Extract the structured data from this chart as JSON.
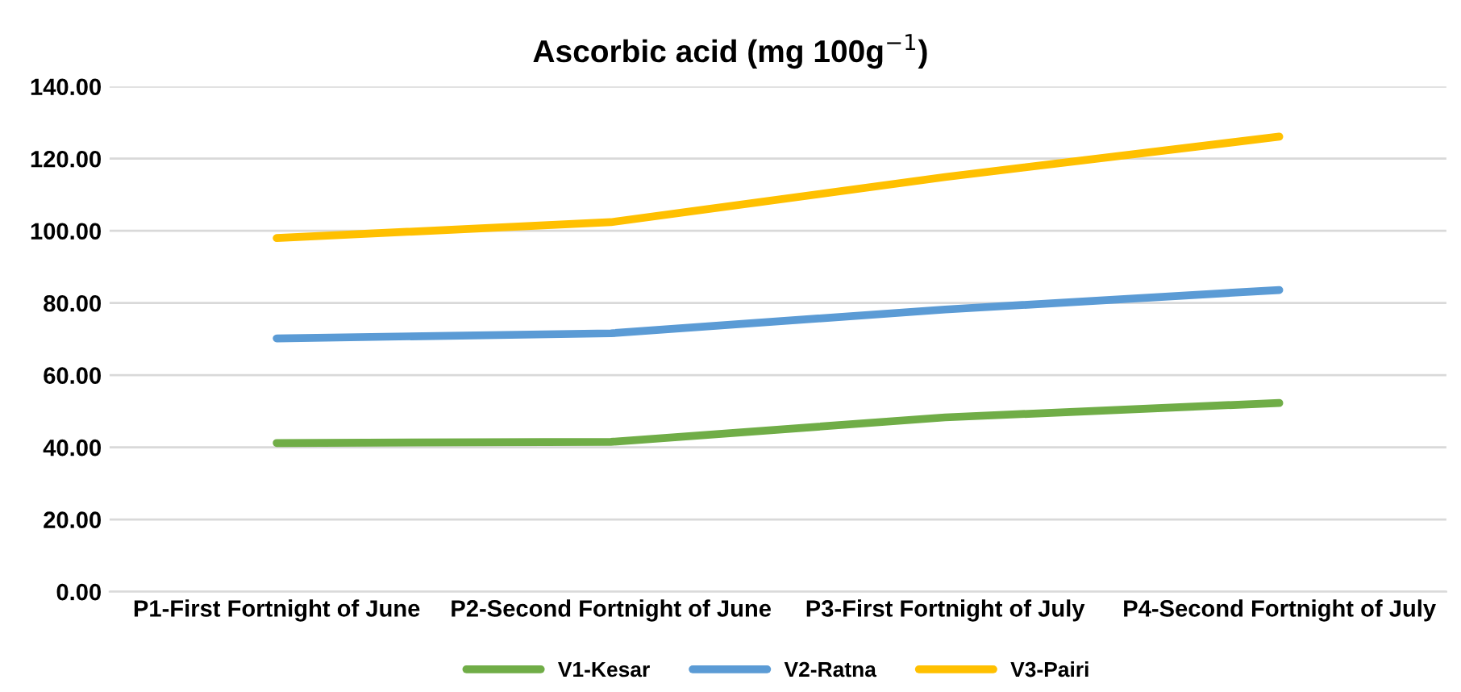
{
  "chart_data": {
    "type": "line",
    "title": "Ascorbic acid (mg 100g$^{−1}$)",
    "categories": [
      "P1-First Fortnight of June",
      "P2-Second Fortnight of June",
      "P3-First Fortnight of July",
      "P4-Second Fortnight of July"
    ],
    "series": [
      {
        "name": "V1-Kesar",
        "color": "#70ad47",
        "values": [
          41.2,
          41.5,
          48.3,
          52.3
        ]
      },
      {
        "name": "V2-Ratna",
        "color": "#5b9bd5",
        "values": [
          70.2,
          71.6,
          78.2,
          83.6
        ]
      },
      {
        "name": "V3-Pairi",
        "color": "#ffc000",
        "values": [
          98.0,
          102.4,
          114.9,
          126.1
        ]
      }
    ],
    "ylim": [
      0,
      140
    ],
    "yticks": [
      {
        "value": 0,
        "label": "0.00"
      },
      {
        "value": 20,
        "label": "20.00"
      },
      {
        "value": 40,
        "label": "40.00"
      },
      {
        "value": 60,
        "label": "60.00"
      },
      {
        "value": 80,
        "label": "80.00"
      },
      {
        "value": 100,
        "label": "100.00"
      },
      {
        "value": 120,
        "label": "120.00"
      },
      {
        "value": 140,
        "label": "140.00"
      }
    ],
    "grid": "y",
    "legend": "bottom",
    "marker": "none",
    "line_style": "solid"
  }
}
